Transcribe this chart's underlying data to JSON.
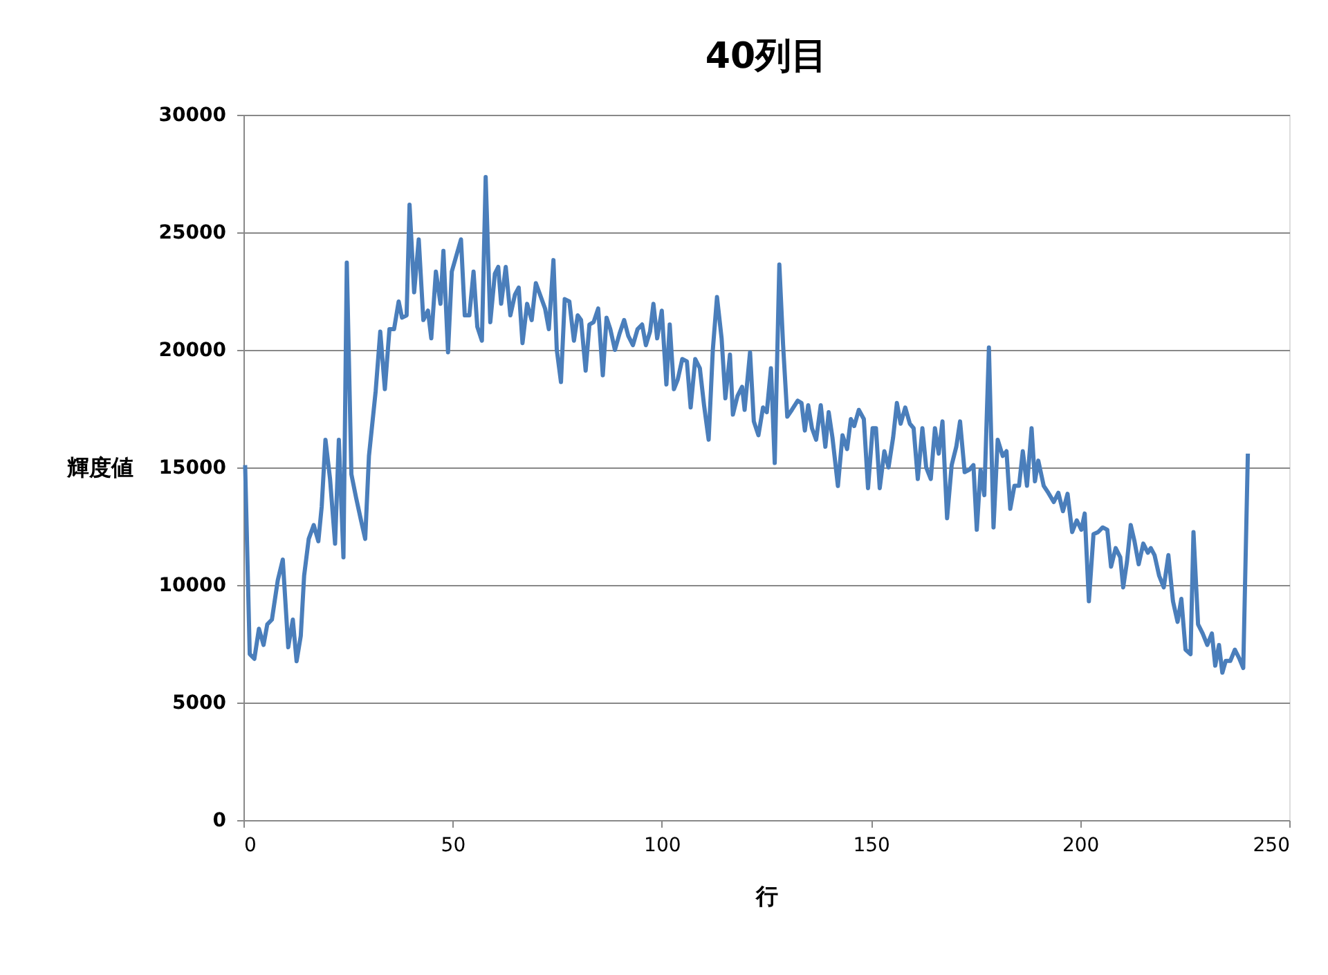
{
  "chart_data": {
    "type": "line",
    "title": "40列目",
    "xlabel": "行",
    "ylabel": "輝度値",
    "xlim": [
      0,
      250
    ],
    "xticks": [
      0,
      50,
      100,
      150,
      200,
      250
    ],
    "ylim": [
      0,
      30000
    ],
    "yticks": [
      0,
      5000,
      10000,
      15000,
      20000,
      25000,
      30000
    ],
    "grid": "y",
    "marker": "none",
    "line_style": "solid",
    "series": [
      {
        "color": "#4a7ebb",
        "x": [
          0.4,
          1.5,
          2.6,
          3.7,
          4.8,
          5.7,
          6.8,
          8.2,
          9.4,
          10.7,
          11.8,
          12.7,
          13.7,
          14.5,
          15.6,
          16.8,
          17.9,
          18.7,
          19.6,
          20.7,
          21.9,
          22.8,
          23.9,
          24.7,
          25.8,
          26.9,
          28.1,
          29.1,
          30.0,
          31.6,
          32.7,
          33.8,
          34.9,
          36.0,
          37.1,
          37.9,
          39.0,
          39.7,
          40.8,
          41.9,
          43.0,
          44.1,
          44.9,
          46.0,
          47.1,
          47.8,
          48.9,
          49.8,
          52.0,
          52.9,
          54.0,
          55.0,
          55.9,
          57.0,
          57.9,
          59.0,
          60.1,
          60.9,
          61.6,
          62.7,
          63.8,
          64.9,
          65.8,
          66.7,
          67.8,
          68.9,
          69.9,
          71.1,
          72.1,
          73.0,
          74.1,
          74.9,
          75.9,
          76.8,
          77.9,
          79.0,
          79.9,
          80.7,
          81.8,
          82.7,
          83.7,
          84.8,
          85.9,
          86.8,
          87.7,
          88.8,
          89.9,
          91.0,
          92.0,
          93.1,
          94.2,
          95.3,
          96.2,
          97.2,
          98.0,
          98.9,
          100.0,
          101.1,
          101.9,
          102.9,
          103.8,
          104.9,
          106.0,
          106.9,
          108.0,
          109.1,
          110.1,
          111.2,
          112.2,
          113.2,
          114.3,
          115.2,
          116.3,
          117.0,
          118.1,
          119.2,
          119.8,
          121.1,
          122.0,
          123.1,
          124.2,
          125.1,
          126.1,
          127.0,
          128.1,
          129.0,
          130.0,
          131.1,
          132.5,
          133.4,
          134.2,
          135.0,
          135.9,
          136.9,
          138.0,
          139.1,
          139.9,
          140.8,
          142.1,
          143.2,
          144.3,
          145.2,
          146.0,
          147.1,
          148.3,
          149.3,
          150.4,
          151.2,
          152.1,
          153.2,
          154.2,
          155.3,
          156.2,
          157.1,
          158.2,
          159.3,
          160.2,
          161.2,
          162.3,
          163.2,
          164.3,
          165.3,
          166.2,
          167.1,
          168.2,
          169.3,
          170.4,
          171.3,
          172.4,
          173.5,
          174.5,
          175.3,
          176.2,
          177.1,
          178.2,
          179.3,
          180.3,
          181.5,
          182.4,
          183.3,
          184.3,
          185.4,
          186.3,
          187.3,
          188.4,
          189.2,
          190.0,
          191.3,
          192.4,
          193.7,
          194.8,
          195.9,
          197.0,
          198.1,
          199.2,
          200.3,
          201.1,
          202.1,
          203.2,
          204.3,
          205.4,
          206.5,
          207.4,
          208.5,
          209.6,
          210.3,
          211.2,
          212.1,
          213.0,
          214.0,
          215.1,
          216.2,
          216.9,
          217.8,
          218.9,
          220.0,
          221.1,
          222.2,
          223.3,
          224.2,
          225.2,
          226.4,
          227.1,
          228.2,
          229.3,
          230.4,
          231.5,
          232.3,
          233.2,
          234.0,
          234.8,
          235.9,
          237.0,
          238.1,
          239.0,
          240.1
        ],
        "values": [
          15100,
          7060,
          6860,
          8140,
          7450,
          8330,
          8530,
          10200,
          11080,
          7350,
          8530,
          6760,
          7840,
          10390,
          11960,
          12550,
          11860,
          13330,
          16180,
          14510,
          11760,
          16180,
          11180,
          23710,
          14710,
          13730,
          12750,
          11960,
          15490,
          18240,
          20780,
          18330,
          20880,
          20880,
          22060,
          21370,
          21470,
          26180,
          22450,
          24700,
          21270,
          21670,
          20490,
          23330,
          21960,
          24210,
          19900,
          23330,
          24700,
          21470,
          21470,
          23330,
          20980,
          20390,
          27350,
          21180,
          23240,
          23530,
          21960,
          23530,
          21470,
          22350,
          22650,
          20290,
          21960,
          21270,
          22840,
          22250,
          21760,
          20880,
          23820,
          20000,
          18630,
          22160,
          22060,
          20390,
          21470,
          21270,
          19120,
          21080,
          21180,
          21760,
          18920,
          21370,
          20880,
          20000,
          20690,
          21270,
          20590,
          20200,
          20880,
          21080,
          20200,
          20780,
          21960,
          20490,
          21670,
          18530,
          21080,
          18330,
          18730,
          19610,
          19510,
          17550,
          19610,
          19220,
          17650,
          16180,
          20000,
          22250,
          20490,
          17940,
          19800,
          17250,
          18040,
          18430,
          17450,
          19900,
          16960,
          16370,
          17550,
          17350,
          19220,
          15190,
          23630,
          20200,
          17160,
          17450,
          17840,
          17740,
          16570,
          17650,
          16670,
          16180,
          17650,
          15880,
          17350,
          16270,
          14210,
          16370,
          15780,
          17060,
          16760,
          17450,
          17060,
          14120,
          16670,
          16670,
          14120,
          15690,
          15000,
          16270,
          17740,
          16860,
          17550,
          16860,
          16670,
          14510,
          16670,
          15000,
          14510,
          16670,
          15590,
          16960,
          12840,
          15100,
          15880,
          16960,
          14800,
          14900,
          15100,
          12350,
          14900,
          13820,
          20100,
          12450,
          16180,
          15490,
          15690,
          13240,
          14220,
          14220,
          15690,
          14220,
          16670,
          14410,
          15290,
          14220,
          13920,
          13530,
          13920,
          13140,
          13880,
          12250,
          12750,
          12350,
          13040,
          9310,
          12160,
          12250,
          12450,
          12350,
          10780,
          11570,
          11180,
          9900,
          10980,
          12550,
          11860,
          10880,
          11760,
          11370,
          11570,
          11270,
          10390,
          9900,
          11270,
          9310,
          8430,
          9410,
          7250,
          7060,
          12250,
          8330,
          7940,
          7450,
          7940,
          6570,
          7450,
          6270,
          6770,
          6770,
          7250,
          6860,
          6470,
          15590
        ]
      }
    ]
  }
}
